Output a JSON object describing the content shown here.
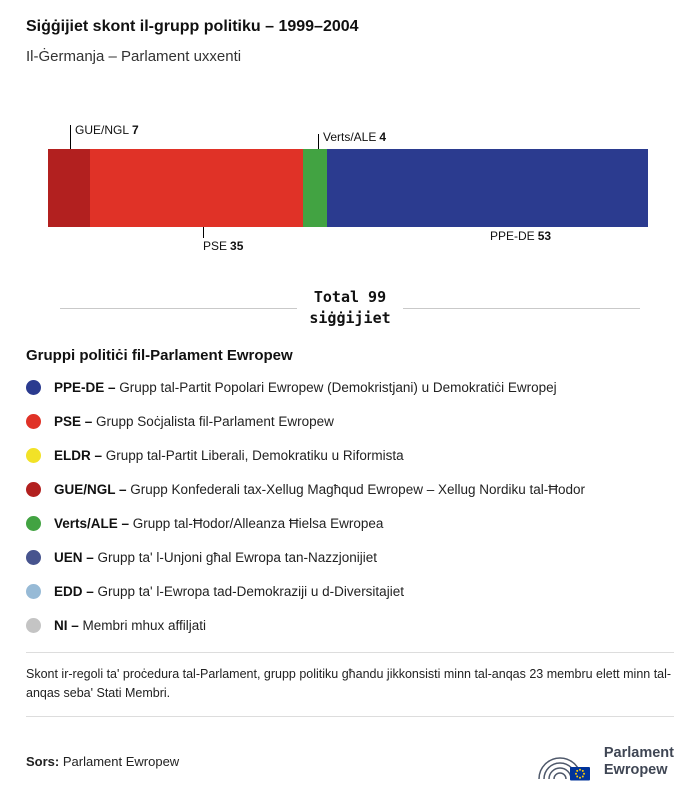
{
  "header": {
    "title": "Siġġijiet skont il-grupp politiku – 1999–2004",
    "subtitle": "Il-Ġermanja – Parlament uxxenti"
  },
  "chart_data": {
    "type": "bar",
    "orientation": "horizontal-stacked",
    "title": "Siġġijiet skont il-grupp politiku – 1999–2004",
    "total": 99,
    "total_label": "Total 99",
    "total_sublabel": "siġġijiet",
    "segments": [
      {
        "id": "gue-ngl",
        "name": "GUE/NGL",
        "value": 7,
        "color": "#b2201f",
        "label_position": "above"
      },
      {
        "id": "pse",
        "name": "PSE",
        "value": 35,
        "color": "#e03227",
        "label_position": "below"
      },
      {
        "id": "verts-ale",
        "name": "Verts/ALE",
        "value": 4,
        "color": "#42a342",
        "label_position": "above"
      },
      {
        "id": "ppe-de",
        "name": "PPE-DE",
        "value": 53,
        "color": "#2b3b8f",
        "label_position": "below"
      }
    ]
  },
  "legend": {
    "title": "Gruppi politiċi fil-Parlament Ewropew",
    "items": [
      {
        "id": "ppe-de",
        "abbr": "PPE-DE –",
        "desc": "Grupp tal-Partit Popolari Ewropew (Demokristjani) u Demokratiċi Ewropej",
        "color": "#2b3b8f"
      },
      {
        "id": "pse",
        "abbr": "PSE –",
        "desc": "Grupp Soċjalista fil-Parlament Ewropew",
        "color": "#e03227"
      },
      {
        "id": "eldr",
        "abbr": "ELDR –",
        "desc": "Grupp tal-Partit Liberali, Demokratiku u Riformista",
        "color": "#f2e227"
      },
      {
        "id": "gue-ngl",
        "abbr": "GUE/NGL –",
        "desc": "Grupp Konfederali tax-Xellug Magħqud Ewropew – Xellug Nordiku tal-Ħodor",
        "color": "#b2201f"
      },
      {
        "id": "verts-ale",
        "abbr": "Verts/ALE –",
        "desc": "Grupp tal-Ħodor/Alleanza Ħielsa Ewropea",
        "color": "#42a342"
      },
      {
        "id": "uen",
        "abbr": "UEN –",
        "desc": "Grupp ta' l-Unjoni għal Ewropa tan-Nazzjonijiet",
        "color": "#47548e"
      },
      {
        "id": "edd",
        "abbr": "EDD –",
        "desc": "Grupp ta' l-Ewropa tad-Demokraziji u d-Diversitajiet",
        "color": "#97bad6"
      },
      {
        "id": "ni",
        "abbr": "NI –",
        "desc": "Membri mhux affiljati",
        "color": "#c4c4c4"
      }
    ]
  },
  "footnote": "Skont ir-regoli ta' proċedura tal-Parlament, grupp politiku għandu jikkonsisti minn tal-anqas 23 membru elett minn tal-anqas seba' Stati Membri.",
  "source": {
    "label": "Sors:",
    "value": "Parlament Ewropew"
  },
  "logo": {
    "line1": "Parlament",
    "line2": "Ewropew"
  }
}
